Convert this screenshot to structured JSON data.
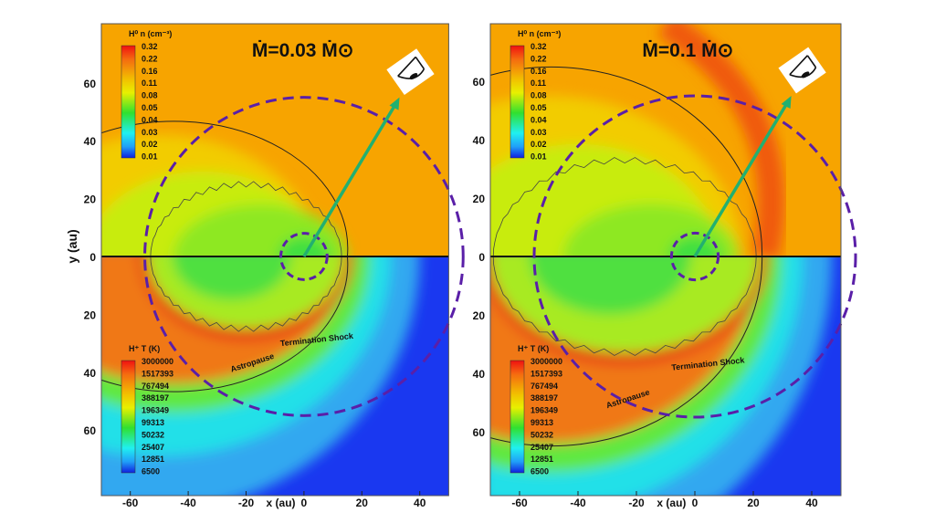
{
  "chart_data": {
    "type": "heatmap",
    "shared": {
      "xlabel": "x (au)",
      "ylabel": "y (au)",
      "xlim": [
        -70,
        50
      ],
      "ylim_upper": [
        0,
        80
      ],
      "ylim_lower": [
        0,
        80
      ],
      "x_ticks": [
        "-60",
        "-40",
        "-20",
        "0",
        "20",
        "40"
      ],
      "x_tick_values": [
        -60,
        -40,
        -20,
        0,
        20,
        40
      ],
      "y_ticks_upper": [
        "0",
        "20",
        "40",
        "60"
      ],
      "y_tick_values_upper": [
        0,
        20,
        40,
        60
      ],
      "y_ticks_lower": [
        "20",
        "40",
        "60"
      ],
      "y_tick_values_lower": [
        20,
        40,
        60
      ]
    },
    "panels": [
      {
        "title": "Ṁ=0.03 Ṁ⊙",
        "upper_colorbar": {
          "label": "H⁰ n (cm⁻³)",
          "ticks": [
            "0.32",
            "0.22",
            "0.16",
            "0.11",
            "0.08",
            "0.05",
            "0.04",
            "0.03",
            "0.02",
            "0.01"
          ]
        },
        "lower_colorbar": {
          "label": "H⁺ T (K)",
          "ticks": [
            "3000000",
            "1517393",
            "767494",
            "388197",
            "196349",
            "99313",
            "50232",
            "25407",
            "12851",
            "6500"
          ]
        },
        "annotations": [
          "Termination Shock",
          "Astropause"
        ],
        "large_circle_radius_au": 55,
        "small_circle_radius_au": 8,
        "view_direction_au": [
          33,
          55
        ]
      },
      {
        "title": "Ṁ=0.1 Ṁ⊙",
        "upper_colorbar": {
          "label": "H⁰ n (cm⁻³)",
          "ticks": [
            "0.32",
            "0.22",
            "0.16",
            "0.11",
            "0.08",
            "0.05",
            "0.04",
            "0.03",
            "0.02",
            "0.01"
          ]
        },
        "lower_colorbar": {
          "label": "H⁺ T (K)",
          "ticks": [
            "3000000",
            "1517393",
            "767494",
            "388197",
            "196349",
            "99313",
            "50232",
            "25407",
            "12851",
            "6500"
          ]
        },
        "annotations": [
          "Termination Shock",
          "Astropause"
        ],
        "large_circle_radius_au": 55,
        "small_circle_radius_au": 8,
        "view_direction_au": [
          33,
          55
        ]
      }
    ],
    "colors": {
      "orange": "#f7a400",
      "red": "#e8241a",
      "yellow": "#e8ec10",
      "green": "#3ee03a",
      "cyan": "#20e0e8",
      "blue": "#1a38f0",
      "circle": "#5a1fa8",
      "arrow": "#22b070"
    }
  }
}
